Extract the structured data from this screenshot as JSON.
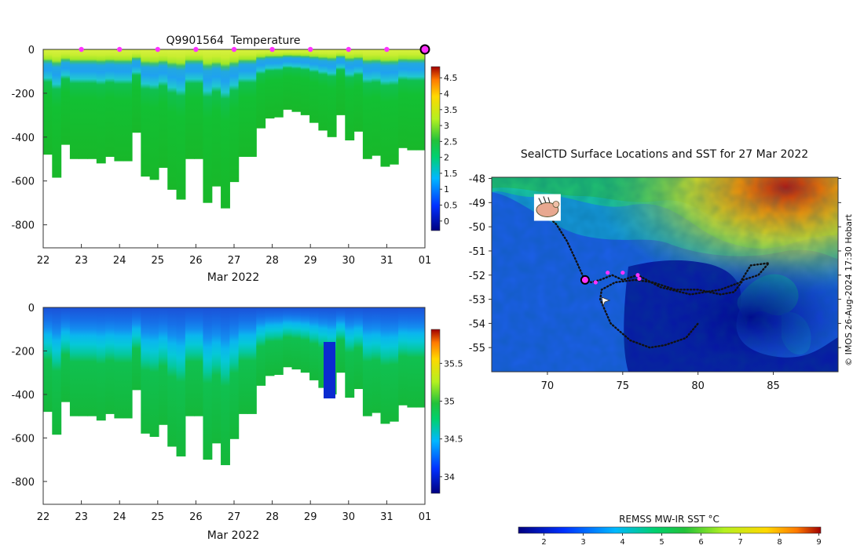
{
  "chart_data": [
    {
      "type": "heatmap",
      "title": "Q9901564  Temperature",
      "xlabel": "Mar 2022",
      "x_tick_labels": [
        "22",
        "23",
        "24",
        "25",
        "26",
        "27",
        "28",
        "29",
        "30",
        "31",
        "01"
      ],
      "x_range_days": [
        22,
        32
      ],
      "y_tick_labels": [
        "0",
        "-200",
        "-400",
        "-600",
        "-800"
      ],
      "y_tick_values": [
        0,
        -200,
        -400,
        -600,
        -800
      ],
      "ylim": [
        -905,
        0
      ],
      "surface_marker_days": [
        23,
        24,
        25,
        26,
        27,
        28,
        29,
        30,
        31
      ],
      "latest_marker_day": 32,
      "colorbar": {
        "range": [
          -0.3,
          4.85
        ],
        "tick_labels": [
          "0",
          "0.5",
          "1",
          "1.5",
          "2",
          "2.5",
          "3",
          "3.5",
          "4",
          "4.5"
        ],
        "tick_values": [
          0,
          0.5,
          1,
          1.5,
          2,
          2.5,
          3,
          3.5,
          4,
          4.5
        ]
      },
      "profile_max_depth_m": [
        480,
        585,
        435,
        500,
        500,
        500,
        520,
        490,
        510,
        510,
        380,
        580,
        595,
        540,
        640,
        685,
        500,
        500,
        700,
        625,
        725,
        605,
        490,
        490,
        360,
        315,
        310,
        275,
        285,
        300,
        335,
        370,
        400,
        300,
        415,
        375,
        500,
        485,
        535,
        525,
        450,
        460,
        460
      ]
    },
    {
      "type": "heatmap",
      "title": "",
      "xlabel": "Mar 2022",
      "x_tick_labels": [
        "22",
        "23",
        "24",
        "25",
        "26",
        "27",
        "28",
        "29",
        "30",
        "31",
        "01"
      ],
      "x_range_days": [
        22,
        32
      ],
      "y_tick_labels": [
        "0",
        "-200",
        "-400",
        "-600",
        "-800"
      ],
      "y_tick_values": [
        0,
        -200,
        -400,
        -600,
        -800
      ],
      "ylim": [
        -905,
        0
      ],
      "colorbar": {
        "range": [
          33.78,
          35.95
        ],
        "tick_labels": [
          "34",
          "34.5",
          "35",
          "35.5"
        ],
        "tick_values": [
          34,
          34.5,
          35,
          35.5
        ]
      },
      "profile_max_depth_m": [
        480,
        585,
        435,
        500,
        500,
        500,
        520,
        490,
        510,
        510,
        380,
        580,
        595,
        540,
        640,
        685,
        500,
        500,
        700,
        625,
        725,
        605,
        490,
        490,
        360,
        315,
        310,
        275,
        285,
        300,
        335,
        370,
        400,
        300,
        415,
        375,
        500,
        485,
        535,
        525,
        450,
        460,
        460
      ]
    },
    {
      "type": "map",
      "title": "SealCTD Surface Locations and SST for 27 Mar 2022",
      "x_tick_labels": [
        "70",
        "75",
        "80",
        "85"
      ],
      "x_tick_values": [
        70,
        75,
        80,
        85
      ],
      "xlim": [
        66.3,
        89.3
      ],
      "y_tick_labels": [
        "-48",
        "-49",
        "-50",
        "-51",
        "-52",
        "-53",
        "-54",
        "-55"
      ],
      "y_tick_values": [
        -48,
        -49,
        -50,
        -51,
        -52,
        -53,
        -54,
        -55
      ],
      "ylim": [
        -56,
        -47.95
      ],
      "track": [
        [
          69.9,
          -49.5
        ],
        [
          70.6,
          -49.9
        ],
        [
          71.3,
          -50.6
        ],
        [
          71.9,
          -51.4
        ],
        [
          72.4,
          -52.1
        ],
        [
          72.9,
          -52.3
        ],
        [
          73.5,
          -52.2
        ],
        [
          74.3,
          -52.0
        ],
        [
          75.0,
          -52.2
        ],
        [
          76.0,
          -52.0
        ],
        [
          77.5,
          -52.5
        ],
        [
          79.5,
          -52.8
        ],
        [
          81.5,
          -52.6
        ],
        [
          82.8,
          -52.3
        ],
        [
          83.5,
          -51.6
        ],
        [
          84.7,
          -51.5
        ],
        [
          84.0,
          -52.0
        ],
        [
          83.0,
          -52.2
        ],
        [
          82.4,
          -52.7
        ],
        [
          81.5,
          -52.8
        ],
        [
          80.0,
          -52.6
        ],
        [
          78.5,
          -52.6
        ],
        [
          77.0,
          -52.3
        ],
        [
          75.8,
          -52.2
        ],
        [
          74.5,
          -52.3
        ],
        [
          73.6,
          -52.6
        ],
        [
          73.5,
          -53.0
        ],
        [
          74.2,
          -54.0
        ],
        [
          75.5,
          -54.7
        ],
        [
          76.8,
          -55.0
        ],
        [
          77.8,
          -54.9
        ],
        [
          79.2,
          -54.6
        ],
        [
          80.0,
          -54.0
        ]
      ],
      "surface_locations": [
        [
          74.0,
          -51.9
        ],
        [
          75.0,
          -51.9
        ],
        [
          76.0,
          -52.0
        ],
        [
          76.1,
          -52.15
        ],
        [
          73.2,
          -52.3
        ]
      ],
      "latest_location": [
        72.5,
        -52.2
      ],
      "seal_marker": [
        70.0,
        -49.2
      ],
      "colorbar": {
        "title": "REMSS MW-IR SST °C",
        "range": [
          1.35,
          9.05
        ],
        "tick_labels": [
          "2",
          "3",
          "4",
          "5",
          "6",
          "7",
          "8",
          "9"
        ],
        "tick_values": [
          2,
          3,
          4,
          5,
          6,
          7,
          8,
          9
        ]
      }
    }
  ],
  "credit": "© IMOS 26-Aug-2024 17:30 Hobart",
  "colors": {
    "marker": "#ff33ff",
    "track": "#111111"
  }
}
